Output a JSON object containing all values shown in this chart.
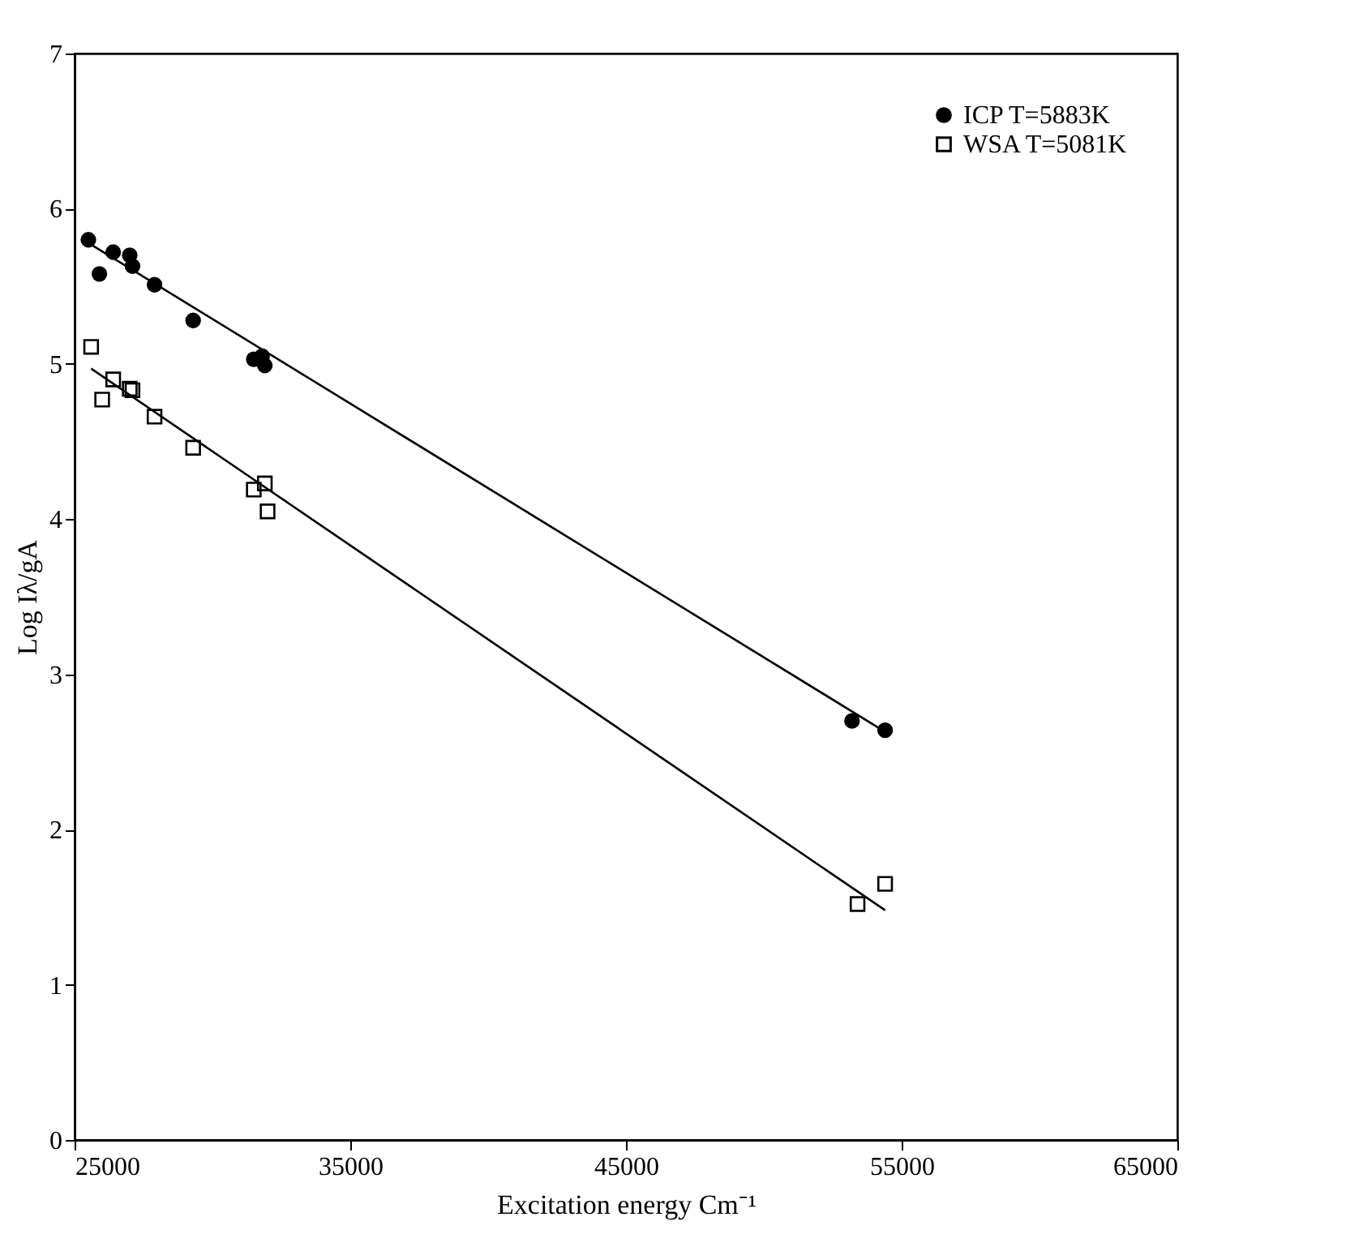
{
  "chart_data": {
    "type": "scatter",
    "xlabel": "Excitation energy Cm⁻¹",
    "ylabel": "Log Iλ/gA",
    "xlim": [
      25000,
      65000
    ],
    "xticks": [
      25000,
      35000,
      45000,
      55000,
      65000
    ],
    "ylim": [
      0,
      7
    ],
    "yticks": [
      0,
      1,
      2,
      3,
      4,
      5,
      6,
      7
    ],
    "grid": false,
    "legend": "top right",
    "series": [
      {
        "name": "ICP T=5883K",
        "marker": "circle",
        "color": "#000000",
        "x": [
          25500,
          25900,
          26400,
          27000,
          27100,
          27900,
          29300,
          31500,
          31800,
          31900,
          53200,
          54400
        ],
        "values": [
          5.8,
          5.58,
          5.72,
          5.7,
          5.63,
          5.51,
          5.28,
          5.03,
          5.05,
          4.99,
          2.7,
          2.64
        ]
      },
      {
        "name": "WSA T=5081K",
        "marker": "square",
        "color": "#000000",
        "x": [
          25600,
          26000,
          26400,
          27000,
          27100,
          27900,
          29300,
          31500,
          31900,
          32000,
          53400,
          54400
        ],
        "values": [
          5.11,
          4.77,
          4.9,
          4.84,
          4.83,
          4.66,
          4.46,
          4.19,
          4.23,
          4.05,
          1.52,
          1.65
        ]
      },
      {
        "type": "line",
        "color": "#000000",
        "line_style": "solid",
        "x": [
          25500,
          54400
        ],
        "values": [
          5.78,
          2.63
        ]
      },
      {
        "type": "line",
        "color": "#000000",
        "line_style": "solid",
        "x": [
          25600,
          54400
        ],
        "values": [
          4.97,
          1.48
        ]
      }
    ]
  }
}
